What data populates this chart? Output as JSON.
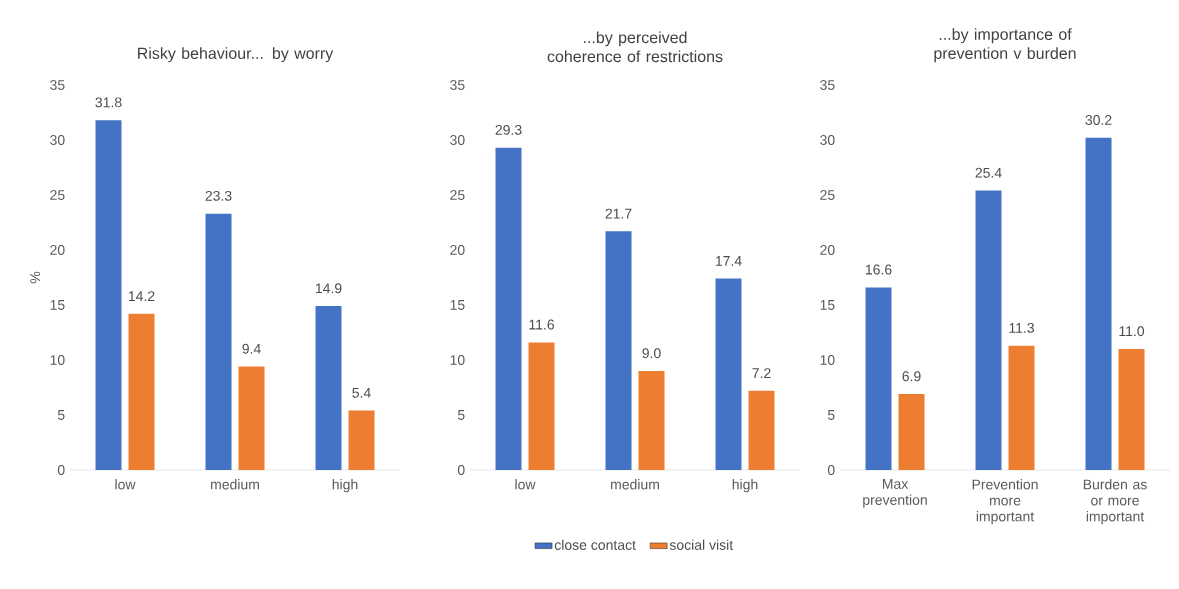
{
  "chart_data": [
    {
      "type": "bar",
      "title": "Risky behaviour... by worry",
      "ylabel": "%",
      "categories": [
        "low",
        "medium",
        "high"
      ],
      "ylim": [
        0,
        35
      ],
      "yticks": [
        0,
        5,
        10,
        15,
        20,
        25,
        30,
        35
      ],
      "grid": false,
      "series": [
        {
          "color": "#4472c4",
          "values": [
            31.8,
            23.3,
            14.9
          ],
          "value_labels": [
            "31.8",
            "23.3",
            "14.9"
          ]
        },
        {
          "color": "#ed7d31",
          "values": [
            14.2,
            9.4,
            5.4
          ],
          "value_labels": [
            "14.2",
            "9.4",
            "5.4"
          ]
        }
      ]
    },
    {
      "type": "bar",
      "title": "...by perceived coherence of restrictions",
      "categories": [
        "low",
        "medium",
        "high"
      ],
      "ylim": [
        0,
        35
      ],
      "yticks": [
        0,
        5,
        10,
        15,
        20,
        25,
        30,
        35
      ],
      "grid": false,
      "legend": "bottom",
      "series": [
        {
          "name": "close contact",
          "color": "#4472c4",
          "values": [
            29.3,
            21.7,
            17.4
          ],
          "value_labels": [
            "29.3",
            "21.7",
            "17.4"
          ]
        },
        {
          "name": "social visit",
          "color": "#ed7d31",
          "values": [
            11.6,
            9.0,
            7.2
          ],
          "value_labels": [
            "11.6",
            "9.0",
            "7.2"
          ]
        }
      ]
    },
    {
      "type": "bar",
      "title": "...by importance of prevention v burden",
      "categories": [
        "Max prevention",
        "Prevention more important",
        "Burden as or more important"
      ],
      "ylim": [
        0,
        35
      ],
      "yticks": [
        0,
        5,
        10,
        15,
        20,
        25,
        30,
        35
      ],
      "grid": false,
      "series": [
        {
          "color": "#4472c4",
          "values": [
            16.6,
            25.4,
            30.2
          ],
          "value_labels": [
            "16.6",
            "25.4",
            "30.2"
          ]
        },
        {
          "color": "#ed7d31",
          "values": [
            6.9,
            11.3,
            11.0
          ],
          "value_labels": [
            "6.9",
            "11.3",
            "11.0"
          ]
        }
      ]
    }
  ]
}
